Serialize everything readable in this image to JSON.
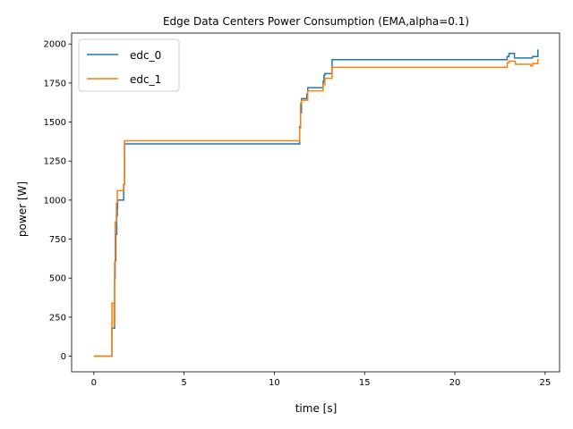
{
  "chart_data": {
    "type": "line",
    "title": "Edge Data Centers Power Consumption (EMA,alpha=0.1)",
    "xlabel": "time [s]",
    "ylabel": "power [W]",
    "xlim": [
      -1.23,
      25.8
    ],
    "ylim": [
      -100,
      2070
    ],
    "x_ticks": [
      0,
      5,
      10,
      15,
      20,
      25
    ],
    "x_tick_labels": [
      "0",
      "5",
      "10",
      "15",
      "20",
      "25"
    ],
    "y_ticks": [
      0,
      250,
      500,
      750,
      1000,
      1250,
      1500,
      1750,
      2000
    ],
    "y_tick_labels": [
      "0",
      "250",
      "500",
      "750",
      "1000",
      "1250",
      "1500",
      "1750",
      "2000"
    ],
    "grid": false,
    "legend_position": "top-left",
    "series": [
      {
        "name": "edc_0",
        "color": "#1f77b4",
        "step": true,
        "points": [
          [
            0,
            0
          ],
          [
            1.0,
            0
          ],
          [
            1.0,
            180
          ],
          [
            1.15,
            180
          ],
          [
            1.15,
            500
          ],
          [
            1.18,
            500
          ],
          [
            1.18,
            610
          ],
          [
            1.22,
            610
          ],
          [
            1.22,
            780
          ],
          [
            1.27,
            780
          ],
          [
            1.27,
            900
          ],
          [
            1.3,
            900
          ],
          [
            1.3,
            950
          ],
          [
            1.32,
            950
          ],
          [
            1.32,
            1000
          ],
          [
            1.65,
            1000
          ],
          [
            1.65,
            1100
          ],
          [
            1.7,
            1100
          ],
          [
            1.7,
            1360
          ],
          [
            11.4,
            1360
          ],
          [
            11.4,
            1470
          ],
          [
            11.45,
            1470
          ],
          [
            11.45,
            1560
          ],
          [
            11.5,
            1560
          ],
          [
            11.5,
            1650
          ],
          [
            11.8,
            1650
          ],
          [
            11.8,
            1680
          ],
          [
            11.85,
            1680
          ],
          [
            11.85,
            1720
          ],
          [
            12.7,
            1720
          ],
          [
            12.7,
            1760
          ],
          [
            12.75,
            1760
          ],
          [
            12.75,
            1800
          ],
          [
            12.8,
            1800
          ],
          [
            12.8,
            1810
          ],
          [
            13.2,
            1810
          ],
          [
            13.2,
            1900
          ],
          [
            22.9,
            1900
          ],
          [
            22.9,
            1920
          ],
          [
            23.0,
            1920
          ],
          [
            23.0,
            1940
          ],
          [
            23.3,
            1940
          ],
          [
            23.3,
            1910
          ],
          [
            24.3,
            1910
          ],
          [
            24.3,
            1920
          ],
          [
            24.6,
            1920
          ],
          [
            24.6,
            1960
          ],
          [
            24.65,
            1960
          ]
        ]
      },
      {
        "name": "edc_1",
        "color": "#ff7f0e",
        "step": true,
        "points": [
          [
            0,
            0
          ],
          [
            1.0,
            0
          ],
          [
            1.0,
            340
          ],
          [
            1.12,
            340
          ],
          [
            1.12,
            200
          ],
          [
            1.15,
            200
          ],
          [
            1.15,
            600
          ],
          [
            1.18,
            600
          ],
          [
            1.18,
            860
          ],
          [
            1.25,
            860
          ],
          [
            1.25,
            980
          ],
          [
            1.3,
            980
          ],
          [
            1.3,
            1060
          ],
          [
            1.65,
            1060
          ],
          [
            1.65,
            1100
          ],
          [
            1.7,
            1100
          ],
          [
            1.7,
            1380
          ],
          [
            11.4,
            1380
          ],
          [
            11.4,
            1460
          ],
          [
            11.45,
            1460
          ],
          [
            11.45,
            1620
          ],
          [
            11.5,
            1620
          ],
          [
            11.5,
            1640
          ],
          [
            11.85,
            1640
          ],
          [
            11.85,
            1700
          ],
          [
            12.7,
            1700
          ],
          [
            12.7,
            1740
          ],
          [
            12.8,
            1740
          ],
          [
            12.8,
            1780
          ],
          [
            13.2,
            1780
          ],
          [
            13.2,
            1850
          ],
          [
            22.9,
            1850
          ],
          [
            22.9,
            1880
          ],
          [
            23.0,
            1880
          ],
          [
            23.0,
            1890
          ],
          [
            23.35,
            1890
          ],
          [
            23.35,
            1870
          ],
          [
            24.2,
            1870
          ],
          [
            24.2,
            1860
          ],
          [
            24.3,
            1860
          ],
          [
            24.3,
            1875
          ],
          [
            24.6,
            1875
          ],
          [
            24.6,
            1900
          ],
          [
            24.65,
            1900
          ]
        ]
      }
    ]
  }
}
